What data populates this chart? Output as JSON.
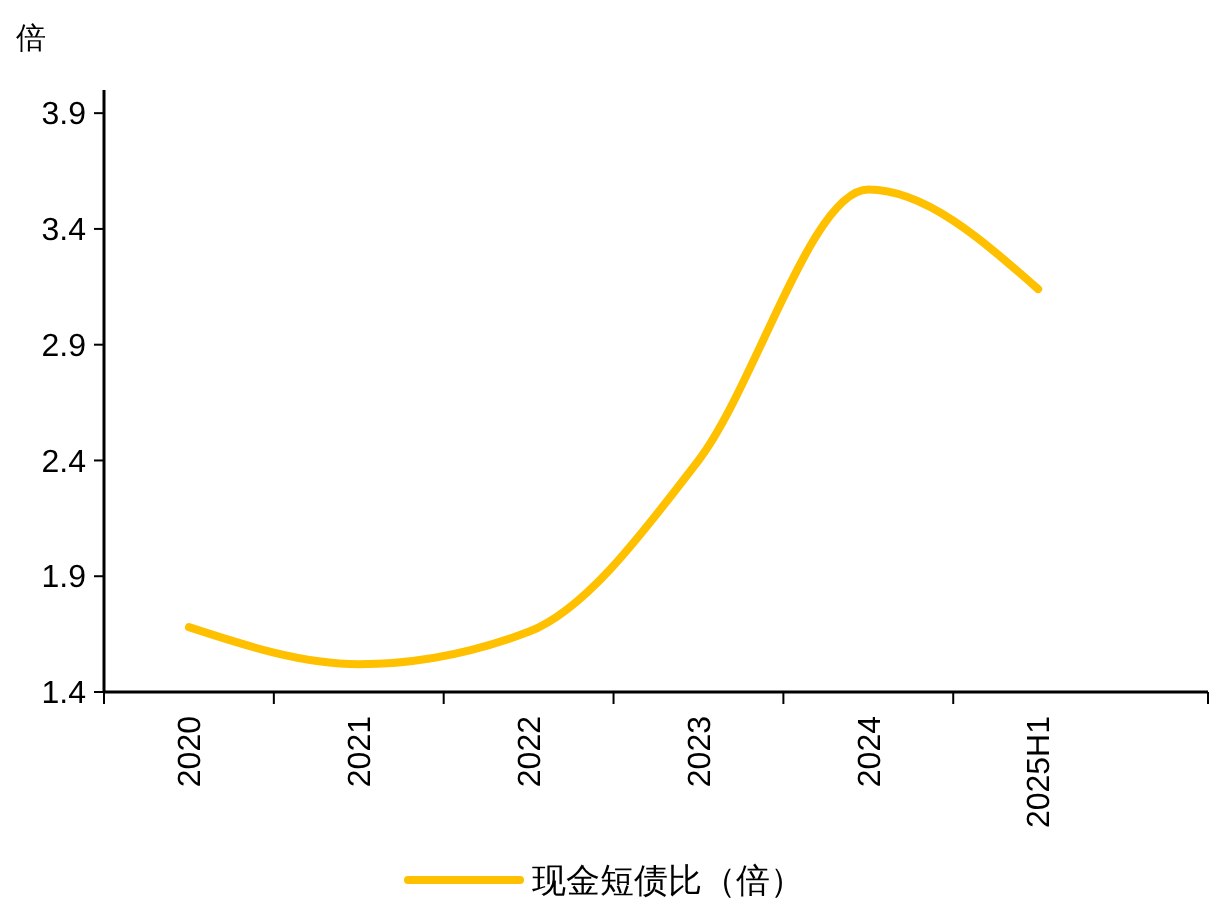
{
  "chart_data": {
    "type": "line",
    "ylabel": "倍",
    "categories": [
      "2020",
      "2021",
      "2022",
      "2023",
      "2024",
      "2025H1"
    ],
    "series": [
      {
        "name": "现金短债比（倍）",
        "color": "#ffc000",
        "values": [
          1.68,
          1.52,
          1.66,
          2.4,
          3.57,
          3.14
        ]
      }
    ],
    "ylim": [
      1.4,
      4.0
    ],
    "yticks": [
      1.4,
      1.9,
      2.4,
      2.9,
      3.4,
      3.9
    ],
    "grid": false,
    "legend": "bottom",
    "marker": "none",
    "line_style": "solid"
  }
}
